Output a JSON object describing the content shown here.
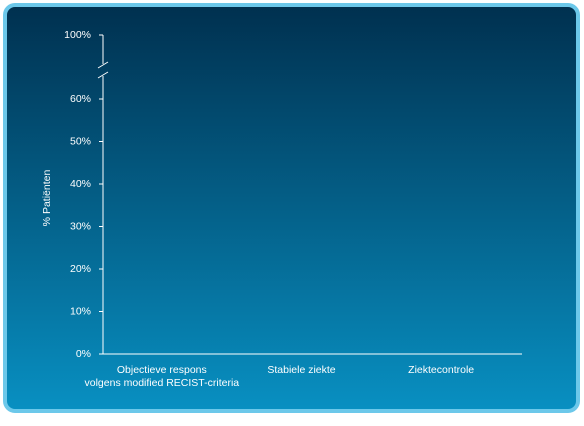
{
  "chart_data": {
    "type": "bar",
    "y_label": "% Patiënten",
    "categories": [
      "Objectieve respons\nvolgens modified RECIST-criteria",
      "Stabiele ziekte",
      "Ziektecontrole"
    ],
    "ylim": [
      0,
      100
    ],
    "axis_break": [
      60,
      100
    ],
    "yticks": [
      {
        "value": 0,
        "label": "0%"
      },
      {
        "value": 10,
        "label": "10%"
      },
      {
        "value": 20,
        "label": "20%"
      },
      {
        "value": 30,
        "label": "30%"
      },
      {
        "value": 40,
        "label": "40%"
      },
      {
        "value": 50,
        "label": "50%"
      },
      {
        "value": 60,
        "label": "60%"
      },
      {
        "value": 100,
        "label": "100%"
      }
    ]
  }
}
